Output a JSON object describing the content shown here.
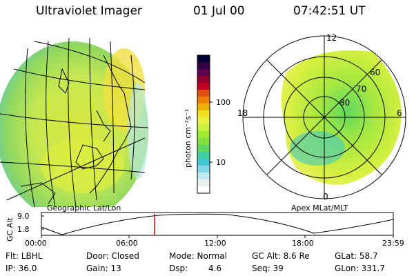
{
  "header": {
    "title": "Ultraviolet Imager",
    "date": "01 Jul 00",
    "time": "07:42:51 UT"
  },
  "geo_panel": {
    "caption": "Geographic Lat/Lon"
  },
  "polar_panel": {
    "caption": "Apex MLat/MLT",
    "mlt_labels": {
      "top": "12",
      "left": "18",
      "right": "6",
      "bottom": "0"
    },
    "lat_labels": [
      "60",
      "70",
      "80"
    ]
  },
  "colorbar": {
    "unit_label": "photon cm⁻²s⁻¹",
    "tick_labels": [
      "100",
      "10"
    ],
    "colors": [
      "#000030",
      "#300040",
      "#600050",
      "#900030",
      "#c00020",
      "#e05010",
      "#f08000",
      "#f0b000",
      "#f0e020",
      "#e8f040",
      "#c8f040",
      "#a0e830",
      "#80e040",
      "#60d860",
      "#40d0a0",
      "#40c8d0",
      "#80d8e8",
      "#c0e8f0",
      "#e8f0f0",
      "#ffffff"
    ]
  },
  "altitude_plot": {
    "ylabel": "GC Alt",
    "y_ticks": [
      "9.0",
      "1.8"
    ],
    "x_ticks": [
      "00:00",
      "06:00",
      "12:00",
      "18:00",
      "23:59"
    ],
    "marker_time_hours": 7.714
  },
  "info": {
    "flt": "Flt: LBHL",
    "door": "Door: Closed",
    "mode": "Mode: Normal",
    "gc_alt": "GC Alt: 8.6 Re",
    "glat": "GLat: 58.7",
    "ip": "IP: 36.0",
    "gain": "Gain: 13",
    "dsp_label": "Dsp:",
    "dsp_value": "4.6",
    "seq": "Seq: 39",
    "glon": "GLon: 331.7"
  }
}
